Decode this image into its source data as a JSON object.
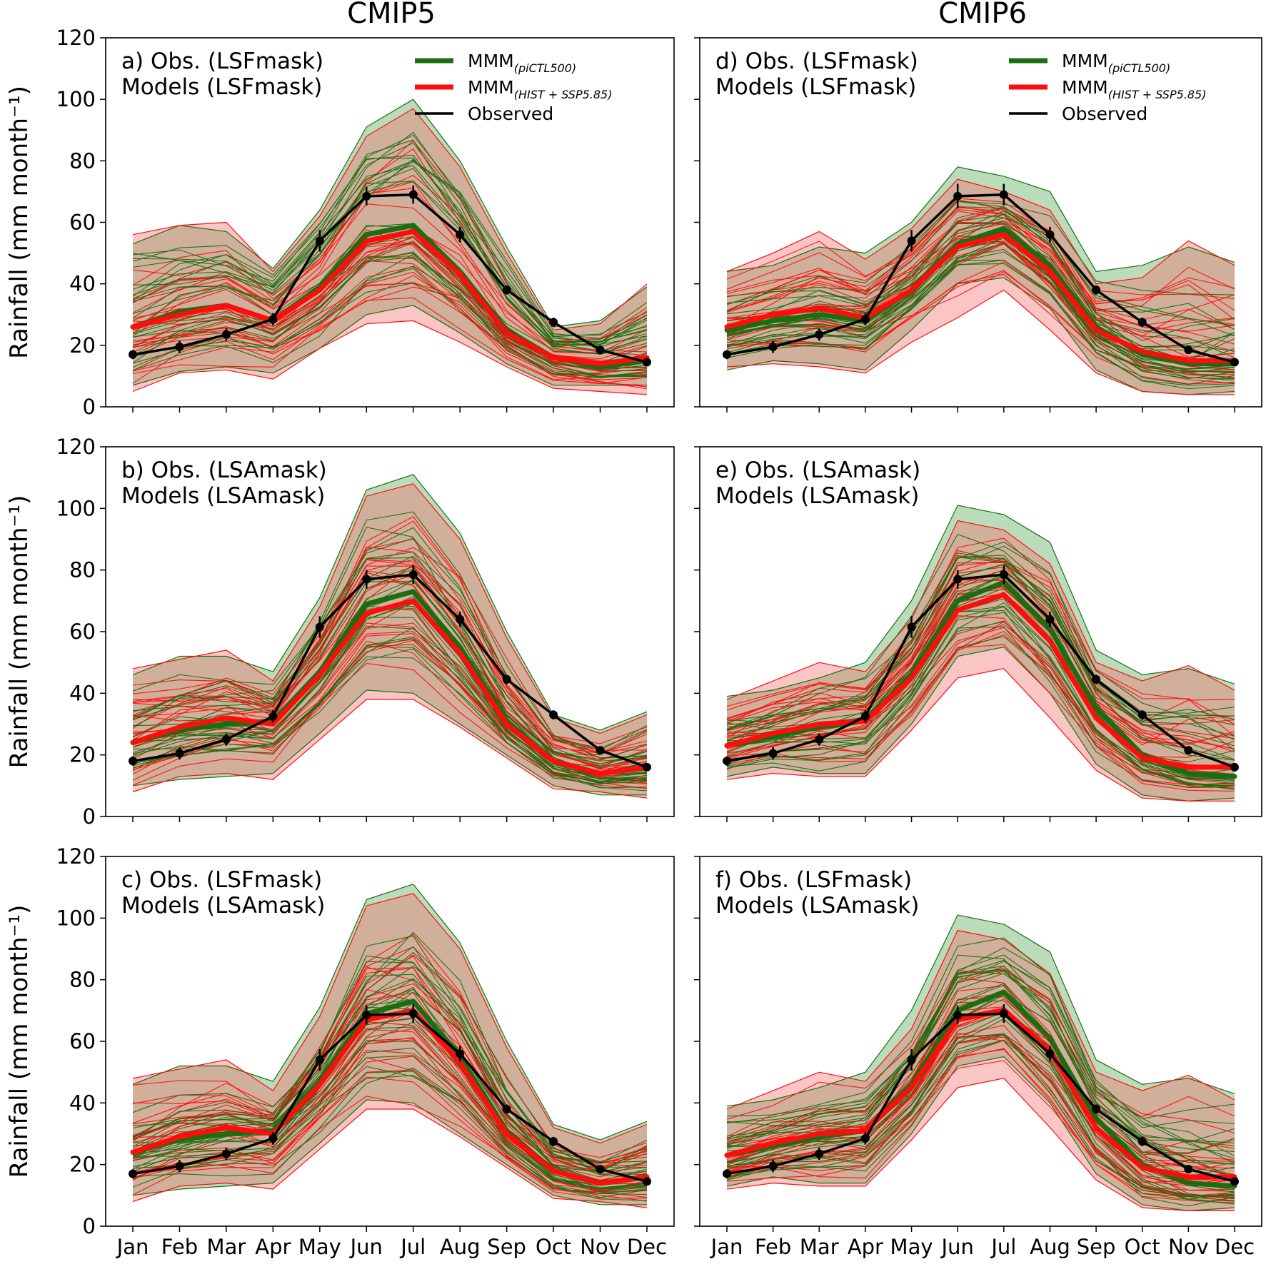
{
  "colors": {
    "piCTL_line": "#1a6e12",
    "piCTL_fill": "#3a9a3a",
    "hist_line": "#ff0d0d",
    "hist_fill": "#f26d6d",
    "observed": "#000000"
  },
  "columns": [
    "CMIP5",
    "CMIP6"
  ],
  "legend": {
    "mmm_text": "MMM",
    "pictl_sub": "(piCTL500)",
    "hist_sub": "(HIST + SSP5.85)",
    "observed": "Observed"
  },
  "chart_data": [
    {
      "type": "line",
      "id": "a",
      "column": "CMIP5",
      "label_line1": "a) Obs. (LSFmask)",
      "label_line2": "Models (LSFmask)",
      "has_legend": true,
      "xlabel": "",
      "ylabel": "Rainfall (mm month⁻¹)",
      "categories": [
        "Jan",
        "Feb",
        "Mar",
        "Apr",
        "May",
        "Jun",
        "Jul",
        "Aug",
        "Sep",
        "Oct",
        "Nov",
        "Dec"
      ],
      "ylim": [
        0,
        120
      ],
      "yticks": [
        0,
        20,
        40,
        60,
        80,
        100,
        120
      ],
      "series": [
        {
          "name": "MMM(piCTL500)",
          "values": [
            26,
            31,
            33,
            28,
            39,
            56,
            59,
            44,
            25,
            16,
            13,
            15
          ]
        },
        {
          "name": "MMM(HIST + SSP5.85)",
          "values": [
            26,
            30,
            33,
            28,
            38,
            54,
            57,
            43,
            24,
            16,
            14,
            16
          ]
        },
        {
          "name": "Observed",
          "values": [
            17,
            19.5,
            23.5,
            28.5,
            54,
            68.5,
            69,
            56,
            38,
            27.5,
            18.5,
            14.5
          ],
          "error": [
            1.5,
            2,
            2,
            2,
            3.5,
            3,
            3,
            2.5,
            1.5,
            1.5,
            1,
            1
          ]
        }
      ],
      "range_piCTL": {
        "lower": [
          7,
          11.5,
          13,
          11,
          19,
          30,
          33,
          24,
          14,
          7,
          7,
          7
        ],
        "upper": [
          53,
          59,
          57,
          45,
          64,
          91,
          100,
          80,
          52,
          26,
          28,
          39
        ]
      },
      "range_hist": {
        "lower": [
          5,
          11,
          12,
          9,
          19,
          27,
          28,
          21,
          13,
          6,
          5,
          4
        ],
        "upper": [
          56,
          59,
          60,
          44,
          62,
          88,
          97,
          78,
          50,
          25,
          27,
          40
        ]
      }
    },
    {
      "type": "line",
      "id": "d",
      "column": "CMIP6",
      "label_line1": "d) Obs. (LSFmask)",
      "label_line2": "Models (LSFmask)",
      "has_legend": true,
      "xlabel": "",
      "ylabel": "",
      "categories": [
        "Jan",
        "Feb",
        "Mar",
        "Apr",
        "May",
        "Jun",
        "Jul",
        "Aug",
        "Sep",
        "Oct",
        "Nov",
        "Dec"
      ],
      "ylim": [
        0,
        120
      ],
      "yticks": [
        0,
        20,
        40,
        60,
        80,
        100,
        120
      ],
      "series": [
        {
          "name": "MMM(piCTL500)",
          "values": [
            25,
            28,
            30,
            28,
            38,
            53,
            58,
            46,
            26,
            17,
            14,
            14
          ]
        },
        {
          "name": "MMM(HIST + SSP5.85)",
          "values": [
            26,
            30,
            32,
            29,
            38,
            52,
            56,
            44,
            25,
            18,
            15,
            15
          ]
        },
        {
          "name": "Observed",
          "values": [
            17,
            19.5,
            23.5,
            28.5,
            54,
            68.5,
            69,
            56,
            38,
            27.5,
            18.5,
            14.5
          ],
          "error": [
            1.5,
            2,
            2,
            2,
            3.5,
            4,
            3.5,
            2.5,
            1.5,
            1.5,
            1,
            1
          ]
        }
      ],
      "range_piCTL": {
        "lower": [
          12,
          15,
          14,
          12,
          25,
          40,
          42,
          32,
          12,
          5,
          4,
          5
        ],
        "upper": [
          44,
          46,
          52,
          50,
          60,
          78,
          75,
          70,
          44,
          46,
          52,
          47
        ]
      },
      "range_hist": {
        "lower": [
          13,
          14,
          13,
          11,
          21,
          29,
          38,
          25,
          11,
          5,
          4,
          4
        ],
        "upper": [
          44,
          50,
          57,
          48,
          58,
          74,
          70,
          64,
          40,
          42,
          54,
          46
        ]
      }
    },
    {
      "type": "line",
      "id": "b",
      "column": "CMIP5",
      "label_line1": "b) Obs. (LSAmask)",
      "label_line2": "Models (LSAmask)",
      "has_legend": false,
      "xlabel": "",
      "ylabel": "Rainfall (mm month⁻¹)",
      "categories": [
        "Jan",
        "Feb",
        "Mar",
        "Apr",
        "May",
        "Jun",
        "Jul",
        "Aug",
        "Sep",
        "Oct",
        "Nov",
        "Dec"
      ],
      "ylim": [
        0,
        120
      ],
      "yticks": [
        0,
        20,
        40,
        60,
        80,
        100,
        120
      ],
      "series": [
        {
          "name": "MMM(piCTL500)",
          "values": [
            24,
            28,
            30,
            31,
            47,
            69,
            73,
            55,
            31,
            18,
            14,
            16
          ]
        },
        {
          "name": "MMM(HIST + SSP5.85)",
          "values": [
            24,
            29,
            32,
            30,
            46,
            66,
            70,
            53,
            30,
            18,
            14,
            16
          ]
        },
        {
          "name": "Observed",
          "values": [
            18,
            20.5,
            25,
            32.5,
            61.5,
            77,
            78.5,
            64,
            44.5,
            33,
            21.5,
            16
          ],
          "error": [
            1.5,
            2,
            2,
            2,
            3.5,
            3,
            3,
            2.5,
            1.5,
            1.5,
            1,
            1
          ]
        }
      ],
      "range_piCTL": {
        "lower": [
          10,
          12,
          13,
          14,
          27,
          41,
          40,
          30,
          20,
          10,
          7,
          7
        ],
        "upper": [
          46,
          52,
          52,
          47,
          71,
          106,
          111,
          92,
          60,
          33,
          28,
          34
        ]
      },
      "range_hist": {
        "lower": [
          8,
          13,
          14,
          12,
          25,
          38,
          38,
          29,
          19,
          9,
          8,
          6
        ],
        "upper": [
          48,
          51,
          54,
          44,
          68,
          104,
          108,
          90,
          58,
          32,
          27,
          33
        ]
      }
    },
    {
      "type": "line",
      "id": "e",
      "column": "CMIP6",
      "label_line1": "e) Obs. (LSAmask)",
      "label_line2": "Models (LSAmask)",
      "has_legend": false,
      "xlabel": "",
      "ylabel": "",
      "categories": [
        "Jan",
        "Feb",
        "Mar",
        "Apr",
        "May",
        "Jun",
        "Jul",
        "Aug",
        "Sep",
        "Oct",
        "Nov",
        "Dec"
      ],
      "ylim": [
        0,
        120
      ],
      "yticks": [
        0,
        20,
        40,
        60,
        80,
        100,
        120
      ],
      "series": [
        {
          "name": "MMM(piCTL500)",
          "values": [
            23,
            26,
            29,
            31,
            46,
            70,
            76,
            61,
            35,
            20,
            14,
            13
          ]
        },
        {
          "name": "MMM(HIST + SSP5.85)",
          "values": [
            23,
            27,
            30,
            31,
            45,
            67,
            72,
            57,
            32,
            19,
            16,
            16
          ]
        },
        {
          "name": "Observed",
          "values": [
            18,
            20.5,
            25,
            32.5,
            61.5,
            77,
            78.5,
            64,
            44.5,
            33,
            21.5,
            16
          ],
          "error": [
            1.5,
            2,
            2,
            2,
            3.5,
            3,
            3,
            2.5,
            1.5,
            1.5,
            1,
            1
          ]
        }
      ],
      "range_piCTL": {
        "lower": [
          13,
          16,
          14,
          14,
          30,
          52,
          55,
          40,
          17,
          7,
          5,
          6
        ],
        "upper": [
          39,
          41,
          45,
          50,
          70,
          101,
          98,
          89,
          54,
          46,
          48,
          43
        ]
      },
      "range_hist": {
        "lower": [
          12,
          14,
          13,
          13,
          28,
          45,
          48,
          32,
          15,
          6,
          5,
          5
        ],
        "upper": [
          38,
          44,
          50,
          47,
          64,
          96,
          93,
          82,
          50,
          44,
          49,
          41
        ]
      }
    },
    {
      "type": "line",
      "id": "c",
      "column": "CMIP5",
      "label_line1": "c) Obs. (LSFmask)",
      "label_line2": "Models (LSAmask)",
      "has_legend": false,
      "xlabel": "",
      "ylabel": "Rainfall (mm month⁻¹)",
      "categories": [
        "Jan",
        "Feb",
        "Mar",
        "Apr",
        "May",
        "Jun",
        "Jul",
        "Aug",
        "Sep",
        "Oct",
        "Nov",
        "Dec"
      ],
      "ylim": [
        0,
        120
      ],
      "yticks": [
        0,
        20,
        40,
        60,
        80,
        100,
        120
      ],
      "series": [
        {
          "name": "MMM(piCTL500)",
          "values": [
            24,
            28,
            30,
            31,
            47,
            69,
            73,
            55,
            31,
            18,
            14,
            16
          ]
        },
        {
          "name": "MMM(HIST + SSP5.85)",
          "values": [
            24,
            29,
            32,
            30,
            46,
            67,
            70,
            53,
            30,
            18,
            14,
            16
          ]
        },
        {
          "name": "Observed",
          "values": [
            17,
            19.5,
            23.5,
            28.5,
            54,
            68.5,
            69,
            56,
            38,
            27.5,
            18.5,
            14.5
          ],
          "error": [
            1.5,
            2,
            2,
            2,
            3.5,
            3,
            3,
            2.5,
            1.5,
            1.5,
            1,
            1
          ]
        }
      ],
      "range_piCTL": {
        "lower": [
          10,
          12,
          13,
          14,
          27,
          41,
          40,
          30,
          20,
          10,
          7,
          7
        ],
        "upper": [
          46,
          52,
          52,
          47,
          71,
          106,
          111,
          92,
          60,
          33,
          28,
          34
        ]
      },
      "range_hist": {
        "lower": [
          8,
          13,
          14,
          12,
          25,
          38,
          38,
          29,
          19,
          9,
          8,
          6
        ],
        "upper": [
          48,
          51,
          54,
          44,
          68,
          104,
          108,
          90,
          58,
          32,
          27,
          33
        ]
      }
    },
    {
      "type": "line",
      "id": "f",
      "column": "CMIP6",
      "label_line1": "f) Obs. (LSFmask)",
      "label_line2": "Models (LSAmask)",
      "has_legend": false,
      "xlabel": "",
      "ylabel": "",
      "categories": [
        "Jan",
        "Feb",
        "Mar",
        "Apr",
        "May",
        "Jun",
        "Jul",
        "Aug",
        "Sep",
        "Oct",
        "Nov",
        "Dec"
      ],
      "ylim": [
        0,
        120
      ],
      "yticks": [
        0,
        20,
        40,
        60,
        80,
        100,
        120
      ],
      "series": [
        {
          "name": "MMM(piCTL500)",
          "values": [
            23,
            26,
            29,
            31,
            46,
            70,
            76,
            61,
            35,
            20,
            14,
            13
          ]
        },
        {
          "name": "MMM(HIST + SSP5.85)",
          "values": [
            23,
            27,
            30,
            31,
            45,
            67,
            70,
            57,
            32,
            19,
            16,
            16
          ]
        },
        {
          "name": "Observed",
          "values": [
            17,
            19.5,
            23.5,
            28.5,
            54,
            68.5,
            69,
            56,
            38,
            27.5,
            18.5,
            14.5
          ],
          "error": [
            1.5,
            2,
            2,
            2,
            3.5,
            3,
            3,
            2.5,
            1.5,
            1.5,
            1,
            1
          ]
        }
      ],
      "range_piCTL": {
        "lower": [
          13,
          16,
          14,
          14,
          30,
          52,
          55,
          40,
          17,
          7,
          5,
          6
        ],
        "upper": [
          39,
          41,
          45,
          50,
          70,
          101,
          98,
          89,
          54,
          46,
          48,
          43
        ]
      },
      "range_hist": {
        "lower": [
          12,
          14,
          13,
          13,
          28,
          45,
          48,
          32,
          15,
          6,
          5,
          5
        ],
        "upper": [
          38,
          44,
          50,
          47,
          64,
          96,
          93,
          82,
          50,
          44,
          49,
          41
        ]
      }
    }
  ]
}
